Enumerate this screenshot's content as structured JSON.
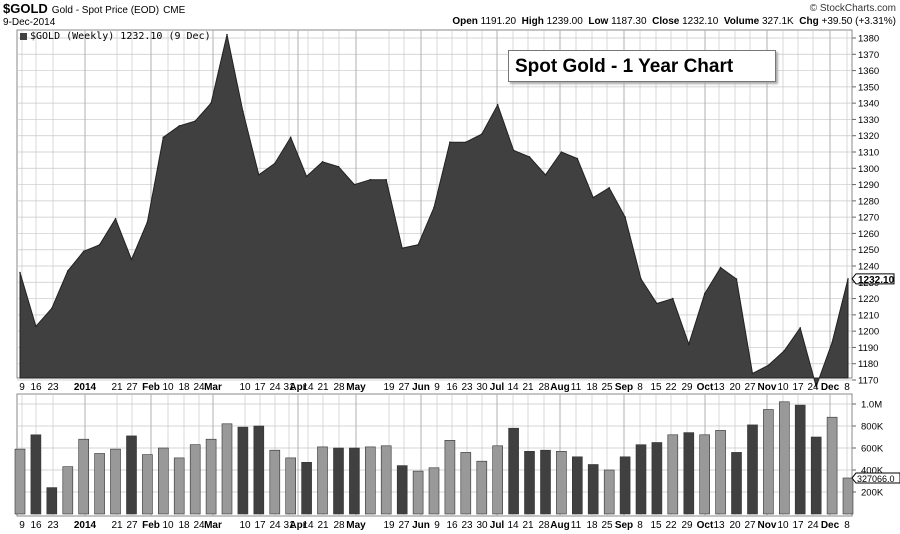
{
  "header": {
    "symbol": "$GOLD",
    "description": "Gold - Spot Price (EOD)",
    "exchange": "CME",
    "credit": "© StockCharts.com",
    "date": "9-Dec-2014",
    "open_label": "Open",
    "open": "1191.20",
    "high_label": "High",
    "high": "1239.00",
    "low_label": "Low",
    "low": "1187.30",
    "close_label": "Close",
    "close": "1232.10",
    "volume_label": "Volume",
    "volume": "327.1K",
    "chg_label": "Chg",
    "chg": "+39.50 (+3.31%)"
  },
  "legend": {
    "text": "$GOLD (Weekly) 1232.10 (9 Dec)"
  },
  "title_box": {
    "text": "Spot Gold - 1 Year Chart"
  },
  "colors": {
    "price_fill": "#404040",
    "volume_up": "#999999",
    "volume_down": "#404040",
    "grid": "#c8c8c8"
  },
  "chart_data": [
    {
      "type": "area",
      "series": [
        {
          "name": "$GOLD (Weekly)",
          "values": [
            1236,
            1203,
            1214,
            1237,
            1249,
            1253,
            1269,
            1244,
            1267,
            1319,
            1326,
            1329,
            1340,
            1382,
            1335,
            1296,
            1303,
            1319,
            1295,
            1304,
            1301,
            1290,
            1293,
            1293,
            1251,
            1253,
            1276,
            1316,
            1316,
            1321,
            1339,
            1311,
            1307,
            1296,
            1310,
            1306,
            1282,
            1288,
            1270,
            1232,
            1217,
            1220,
            1192,
            1223,
            1239,
            1232,
            1174,
            1179,
            1188,
            1202,
            1166,
            1193,
            1232.1
          ]
        }
      ],
      "ylim": [
        1160,
        1390
      ],
      "y_ticks": [
        1170,
        1180,
        1190,
        1200,
        1210,
        1220,
        1230,
        1240,
        1250,
        1260,
        1270,
        1280,
        1290,
        1300,
        1310,
        1320,
        1330,
        1340,
        1350,
        1360,
        1370,
        1380
      ],
      "last_value_label": "1232.10",
      "grid": true
    },
    {
      "type": "bar",
      "series": [
        {
          "name": "Volume",
          "values": [
            590000,
            720000,
            240000,
            430000,
            680000,
            550000,
            590000,
            710000,
            540000,
            600000,
            510000,
            630000,
            680000,
            820000,
            790000,
            800000,
            580000,
            510000,
            470000,
            610000,
            600000,
            600000,
            610000,
            620000,
            440000,
            390000,
            420000,
            670000,
            560000,
            480000,
            620000,
            780000,
            570000,
            580000,
            570000,
            520000,
            450000,
            400000,
            520000,
            630000,
            650000,
            720000,
            740000,
            720000,
            760000,
            560000,
            810000,
            950000,
            1020000,
            990000,
            700000,
            880000,
            327066
          ]
        }
      ],
      "up_down": [
        "u",
        "d",
        "d",
        "u",
        "u",
        "u",
        "u",
        "d",
        "u",
        "u",
        "u",
        "u",
        "u",
        "u",
        "d",
        "d",
        "u",
        "u",
        "d",
        "u",
        "d",
        "d",
        "u",
        "u",
        "d",
        "u",
        "u",
        "u",
        "u",
        "u",
        "u",
        "d",
        "d",
        "d",
        "u",
        "d",
        "d",
        "u",
        "d",
        "d",
        "d",
        "u",
        "d",
        "u",
        "u",
        "d",
        "d",
        "u",
        "u",
        "d",
        "d",
        "u",
        "u"
      ],
      "ylim": [
        0,
        1100000
      ],
      "y_ticks": [
        "200K",
        "400K",
        "600K",
        "800K",
        "1.0M"
      ],
      "last_value_label": "327066.0"
    }
  ],
  "x_axis": {
    "labels": [
      {
        "t": "9",
        "b": false
      },
      {
        "t": "16",
        "b": false
      },
      {
        "t": "23",
        "b": false
      },
      {
        "t": "2014",
        "b": true
      },
      {
        "t": "21",
        "b": false
      },
      {
        "t": "27",
        "b": false
      },
      {
        "t": "Feb",
        "b": true
      },
      {
        "t": "10",
        "b": false
      },
      {
        "t": "18",
        "b": false
      },
      {
        "t": "24",
        "b": false
      },
      {
        "t": "Mar",
        "b": true
      },
      {
        "t": "10",
        "b": false
      },
      {
        "t": "17",
        "b": false
      },
      {
        "t": "24",
        "b": false
      },
      {
        "t": "31",
        "b": false
      },
      {
        "t": "Apr",
        "b": true
      },
      {
        "t": "14",
        "b": false
      },
      {
        "t": "21",
        "b": false
      },
      {
        "t": "28",
        "b": false
      },
      {
        "t": "May",
        "b": true
      },
      {
        "t": "19",
        "b": false
      },
      {
        "t": "27",
        "b": false
      },
      {
        "t": "Jun",
        "b": true
      },
      {
        "t": "9",
        "b": false
      },
      {
        "t": "16",
        "b": false
      },
      {
        "t": "23",
        "b": false
      },
      {
        "t": "30",
        "b": false
      },
      {
        "t": "Jul",
        "b": true
      },
      {
        "t": "14",
        "b": false
      },
      {
        "t": "21",
        "b": false
      },
      {
        "t": "28",
        "b": false
      },
      {
        "t": "Aug",
        "b": true
      },
      {
        "t": "11",
        "b": false
      },
      {
        "t": "18",
        "b": false
      },
      {
        "t": "25",
        "b": false
      },
      {
        "t": "Sep",
        "b": true
      },
      {
        "t": "8",
        "b": false
      },
      {
        "t": "15",
        "b": false
      },
      {
        "t": "22",
        "b": false
      },
      {
        "t": "29",
        "b": false
      },
      {
        "t": "Oct",
        "b": true
      },
      {
        "t": "13",
        "b": false
      },
      {
        "t": "20",
        "b": false
      },
      {
        "t": "27",
        "b": false
      },
      {
        "t": "Nov",
        "b": true
      },
      {
        "t": "10",
        "b": false
      },
      {
        "t": "17",
        "b": false
      },
      {
        "t": "24",
        "b": false
      },
      {
        "t": "Dec",
        "b": true
      },
      {
        "t": "8",
        "b": false
      }
    ]
  }
}
